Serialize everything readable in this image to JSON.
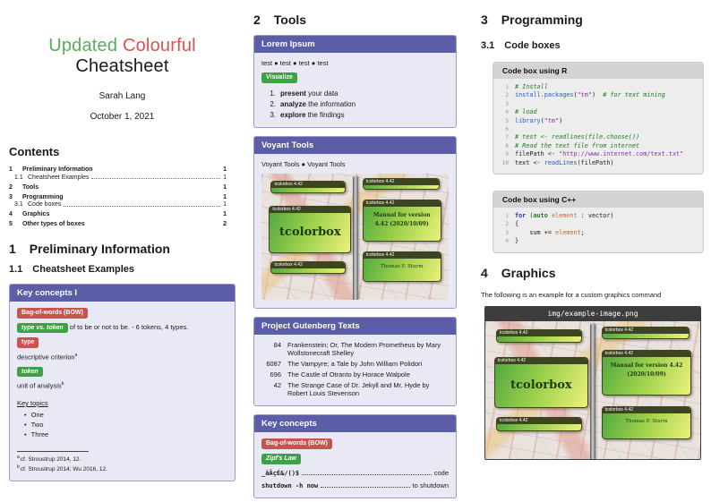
{
  "header": {
    "title_word1": "Updated",
    "title_word2": "Colourful",
    "title_line2": "Cheatsheet",
    "author": "Sarah Lang",
    "date": "October 1, 2021"
  },
  "contents": {
    "heading": "Contents",
    "entries": [
      {
        "num": "1",
        "label": "Preliminary Information",
        "page": "1",
        "level": 1
      },
      {
        "num": "1.1",
        "label": "Cheatsheet Examples",
        "page": "1",
        "level": 2
      },
      {
        "num": "2",
        "label": "Tools",
        "page": "1",
        "level": 1
      },
      {
        "num": "3",
        "label": "Programming",
        "page": "1",
        "level": 1
      },
      {
        "num": "3.1",
        "label": "Code boxes",
        "page": "1",
        "level": 2
      },
      {
        "num": "4",
        "label": "Graphics",
        "page": "1",
        "level": 1
      },
      {
        "num": "5",
        "label": "Other types of boxes",
        "page": "2",
        "level": 1
      }
    ]
  },
  "sections": {
    "s1": {
      "num": "1",
      "title": "Preliminary Information"
    },
    "s11": {
      "num": "1.1",
      "title": "Cheatsheet Examples"
    },
    "s2": {
      "num": "2",
      "title": "Tools"
    },
    "s3": {
      "num": "3",
      "title": "Programming"
    },
    "s31": {
      "num": "3.1",
      "title": "Code boxes"
    },
    "s4": {
      "num": "4",
      "title": "Graphics"
    }
  },
  "key_concepts_1": {
    "title": "Key concepts I",
    "badge_bow": "Bag-of-words (BOW)",
    "badge_type_token": "type vs. token",
    "type_token_text": "of to be or not to be. - 6 tokens, 4 types.",
    "badge_type": "type",
    "type_text": "descriptive criterion",
    "type_fn": "a",
    "badge_token": "token",
    "token_text": "unit of analysis",
    "token_fn": "b",
    "key_topics": "Key topics",
    "topics": [
      "One",
      "Two",
      "Three"
    ],
    "footnotes": [
      {
        "mark": "a",
        "text": "cf. Stroustrup 2014, 12."
      },
      {
        "mark": "b",
        "text": "cf. Stroustrup 2014; Wu 2016, 12."
      }
    ]
  },
  "lorem_ipsum": {
    "title": "Lorem Ipsum",
    "test_items": [
      "test",
      "test",
      "test",
      "test"
    ],
    "badge": "Visualize",
    "steps": [
      {
        "bold": "present",
        "rest": " your data"
      },
      {
        "bold": "analyze",
        "rest": " the information"
      },
      {
        "bold": "explore",
        "rest": " the findings"
      }
    ]
  },
  "voyant": {
    "title": "Voyant Tools",
    "items": [
      "Voyant Tools",
      "Voyant Tools"
    ]
  },
  "gutenberg": {
    "title": "Project Gutenberg Texts",
    "rows": [
      {
        "id": "84",
        "text": "Frankenstein; Or, The Modern Prometheus by Mary Wollstonecraft Shelley"
      },
      {
        "id": "6087",
        "text": "The Vampyre; a Tale by John William Polidori"
      },
      {
        "id": "696",
        "text": "The Castle of Otranto by Horace Walpole"
      },
      {
        "id": "42",
        "text": "The Strange Case of Dr. Jekyll and Mr. Hyde by Robert Louis Stevenson"
      }
    ]
  },
  "key_concepts_2": {
    "title": "Key concepts",
    "badge_bow": "Bag-of-words (BOW)",
    "badge_zipf": "Zipf's Law",
    "lines": [
      {
        "code": "_äÄçÉ&/()$",
        "desc": "code"
      },
      {
        "code": "shutdown -h now",
        "desc": "to shutdown"
      }
    ]
  },
  "code_r": {
    "title": "Code box using R",
    "lines": [
      [
        {
          "c": "com",
          "t": "# Install"
        }
      ],
      [
        {
          "c": "fun",
          "t": "install.packages"
        },
        {
          "c": "pln",
          "t": "("
        },
        {
          "c": "str",
          "t": "\"tm\""
        },
        {
          "c": "pln",
          "t": ")"
        },
        {
          "c": "com",
          "t": "  # for text mining"
        }
      ],
      [],
      [
        {
          "c": "com",
          "t": "# load"
        }
      ],
      [
        {
          "c": "fun",
          "t": "library"
        },
        {
          "c": "pln",
          "t": "("
        },
        {
          "c": "str",
          "t": "\"tm\""
        },
        {
          "c": "pln",
          "t": ")"
        }
      ],
      [],
      [
        {
          "c": "com",
          "t": "# test <- readlines(file.choose())"
        }
      ],
      [
        {
          "c": "com",
          "t": "# Read the text file from internet"
        }
      ],
      [
        {
          "c": "pln",
          "t": "filePath <- "
        },
        {
          "c": "str",
          "t": "\"http://www.internet.com/text.txt\""
        }
      ],
      [
        {
          "c": "pln",
          "t": "text <- "
        },
        {
          "c": "fun",
          "t": "readLines"
        },
        {
          "c": "pln",
          "t": "(filePath)"
        }
      ]
    ]
  },
  "code_cpp": {
    "title": "Code box using C++",
    "lines": [
      [
        {
          "c": "kw",
          "t": "for"
        },
        {
          "c": "pln",
          "t": " ("
        },
        {
          "c": "kw2",
          "t": "auto"
        },
        {
          "c": "pln",
          "t": " "
        },
        {
          "c": "id",
          "t": "element"
        },
        {
          "c": "pln",
          "t": " : vector)"
        }
      ],
      [
        {
          "c": "pln",
          "t": "{"
        }
      ],
      [
        {
          "c": "pln",
          "t": "    sum += "
        },
        {
          "c": "id",
          "t": "element"
        },
        {
          "c": "pln",
          "t": ";"
        }
      ],
      [
        {
          "c": "pln",
          "t": "}"
        }
      ]
    ]
  },
  "graphics": {
    "intro": "The following is an example for a custom graphics command",
    "image_title": "img/example-image.png"
  },
  "tcolorbox_image": {
    "badge": "tcolorbox 4.42",
    "title": "tcolorbox",
    "manual": "Manual for version 4.42 (2020/10/09)",
    "author": "Thomas F. Sturm"
  },
  "colors": {
    "accent_purple": "#5b5ea6",
    "badge_red": "#c9534f",
    "badge_green": "#3fa045",
    "title_green": "#5aab5a",
    "title_red": "#d9534f",
    "code_header_gray": "#d4d4d4",
    "figure_header_dark": "#3d3d3d"
  }
}
